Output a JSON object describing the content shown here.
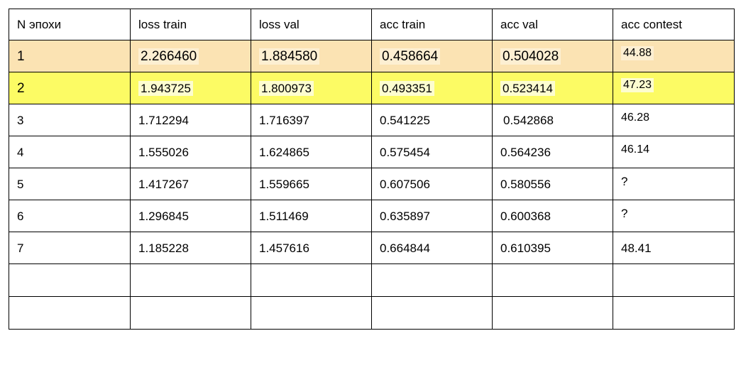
{
  "table": {
    "headers": [
      "N эпохи",
      "loss train",
      "loss val",
      "acc train",
      "acc val",
      "acc contest"
    ],
    "rows": [
      [
        "1",
        "2.266460",
        "1.884580",
        "0.458664",
        "0.504028",
        "44.88"
      ],
      [
        "2",
        "1.943725",
        "1.800973",
        "0.493351",
        "0.523414",
        "47.23"
      ],
      [
        "3",
        "1.712294",
        "1.716397",
        "0.541225",
        "0.542868",
        "46.28"
      ],
      [
        "4",
        "1.555026",
        "1.624865",
        "0.575454",
        "0.564236",
        "46.14"
      ],
      [
        "5",
        "1.417267",
        "1.559665",
        "0.607506",
        "0.580556",
        "?"
      ],
      [
        "6",
        "1.296845",
        "1.511469",
        "0.635897",
        "0.600368",
        "?"
      ],
      [
        "7",
        "1.185228",
        "1.457616",
        "0.664844",
        "0.610395",
        "48.41"
      ]
    ],
    "highlight_colors": {
      "row_1": "#fbe3b3",
      "row_2": "#fcfb64"
    }
  }
}
